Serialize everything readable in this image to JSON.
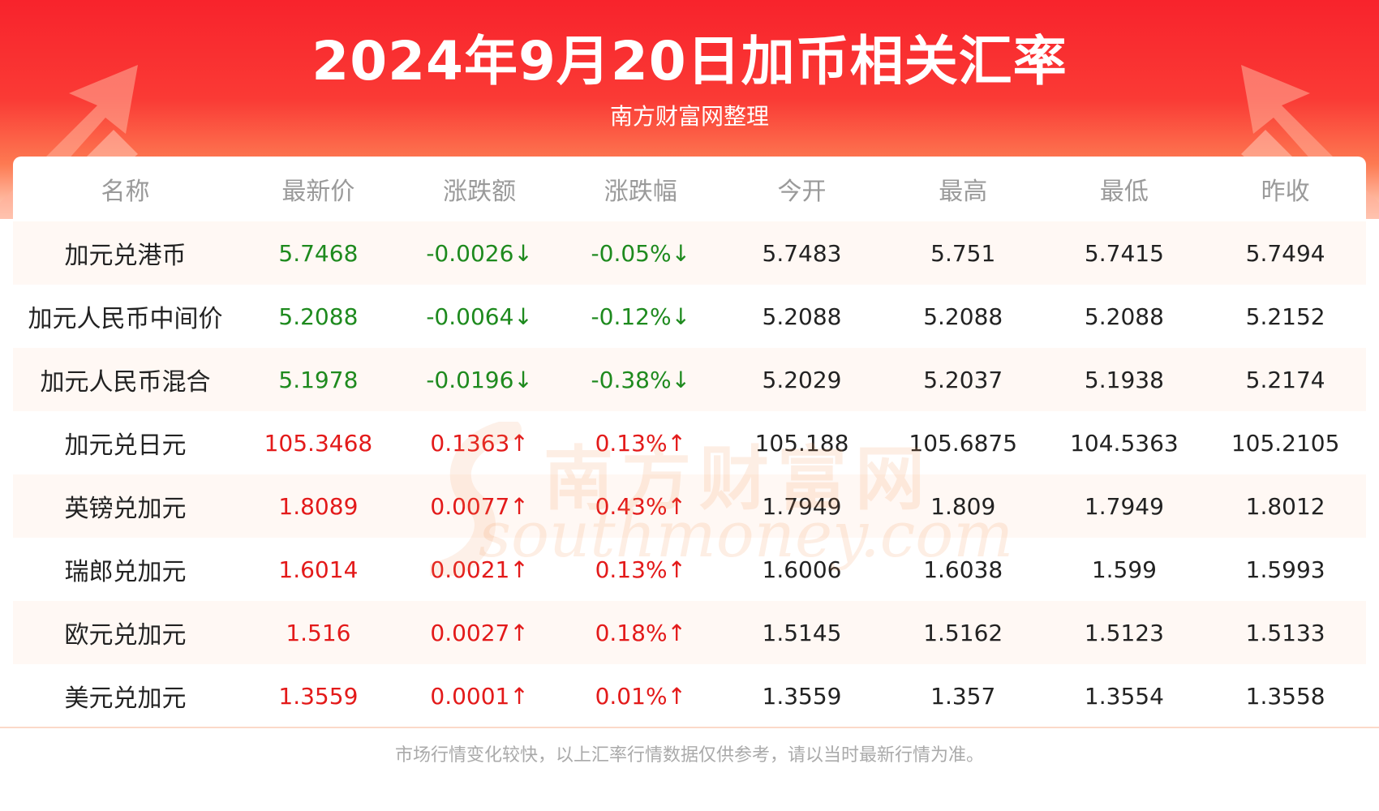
{
  "header": {
    "title": "2024年9月20日加币相关汇率",
    "subtitle": "南方财富网整理"
  },
  "table": {
    "columns": [
      "名称",
      "最新价",
      "涨跌额",
      "涨跌幅",
      "今开",
      "最高",
      "最低",
      "昨收"
    ],
    "rows": [
      {
        "name": "加元兑港币",
        "latest": "5.7468",
        "change": "-0.0026↓",
        "pct": "-0.05%↓",
        "open": "5.7483",
        "high": "5.751",
        "low": "5.7415",
        "prev": "5.7494",
        "trend": "down"
      },
      {
        "name": "加元人民币中间价",
        "latest": "5.2088",
        "change": "-0.0064↓",
        "pct": "-0.12%↓",
        "open": "5.2088",
        "high": "5.2088",
        "low": "5.2088",
        "prev": "5.2152",
        "trend": "down"
      },
      {
        "name": "加元人民币混合",
        "latest": "5.1978",
        "change": "-0.0196↓",
        "pct": "-0.38%↓",
        "open": "5.2029",
        "high": "5.2037",
        "low": "5.1938",
        "prev": "5.2174",
        "trend": "down"
      },
      {
        "name": "加元兑日元",
        "latest": "105.3468",
        "change": "0.1363↑",
        "pct": "0.13%↑",
        "open": "105.188",
        "high": "105.6875",
        "low": "104.5363",
        "prev": "105.2105",
        "trend": "up"
      },
      {
        "name": "英镑兑加元",
        "latest": "1.8089",
        "change": "0.0077↑",
        "pct": "0.43%↑",
        "open": "1.7949",
        "high": "1.809",
        "low": "1.7949",
        "prev": "1.8012",
        "trend": "up"
      },
      {
        "name": "瑞郎兑加元",
        "latest": "1.6014",
        "change": "0.0021↑",
        "pct": "0.13%↑",
        "open": "1.6006",
        "high": "1.6038",
        "low": "1.599",
        "prev": "1.5993",
        "trend": "up"
      },
      {
        "name": "欧元兑加元",
        "latest": "1.516",
        "change": "0.0027↑",
        "pct": "0.18%↑",
        "open": "1.5145",
        "high": "1.5162",
        "low": "1.5123",
        "prev": "1.5133",
        "trend": "up"
      },
      {
        "name": "美元兑加元",
        "latest": "1.3559",
        "change": "0.0001↑",
        "pct": "0.01%↑",
        "open": "1.3559",
        "high": "1.357",
        "low": "1.3554",
        "prev": "1.3558",
        "trend": "up"
      }
    ]
  },
  "watermark": {
    "cn": "南方财富网",
    "en": "southmoney.com"
  },
  "footer": {
    "disclaimer": "市场行情变化较快，以上汇率行情数据仅供参考，请以当时最新行情为准。"
  },
  "colors": {
    "up": "#e31a1a",
    "down": "#1e8a1e",
    "header_red": "#f8232c"
  }
}
